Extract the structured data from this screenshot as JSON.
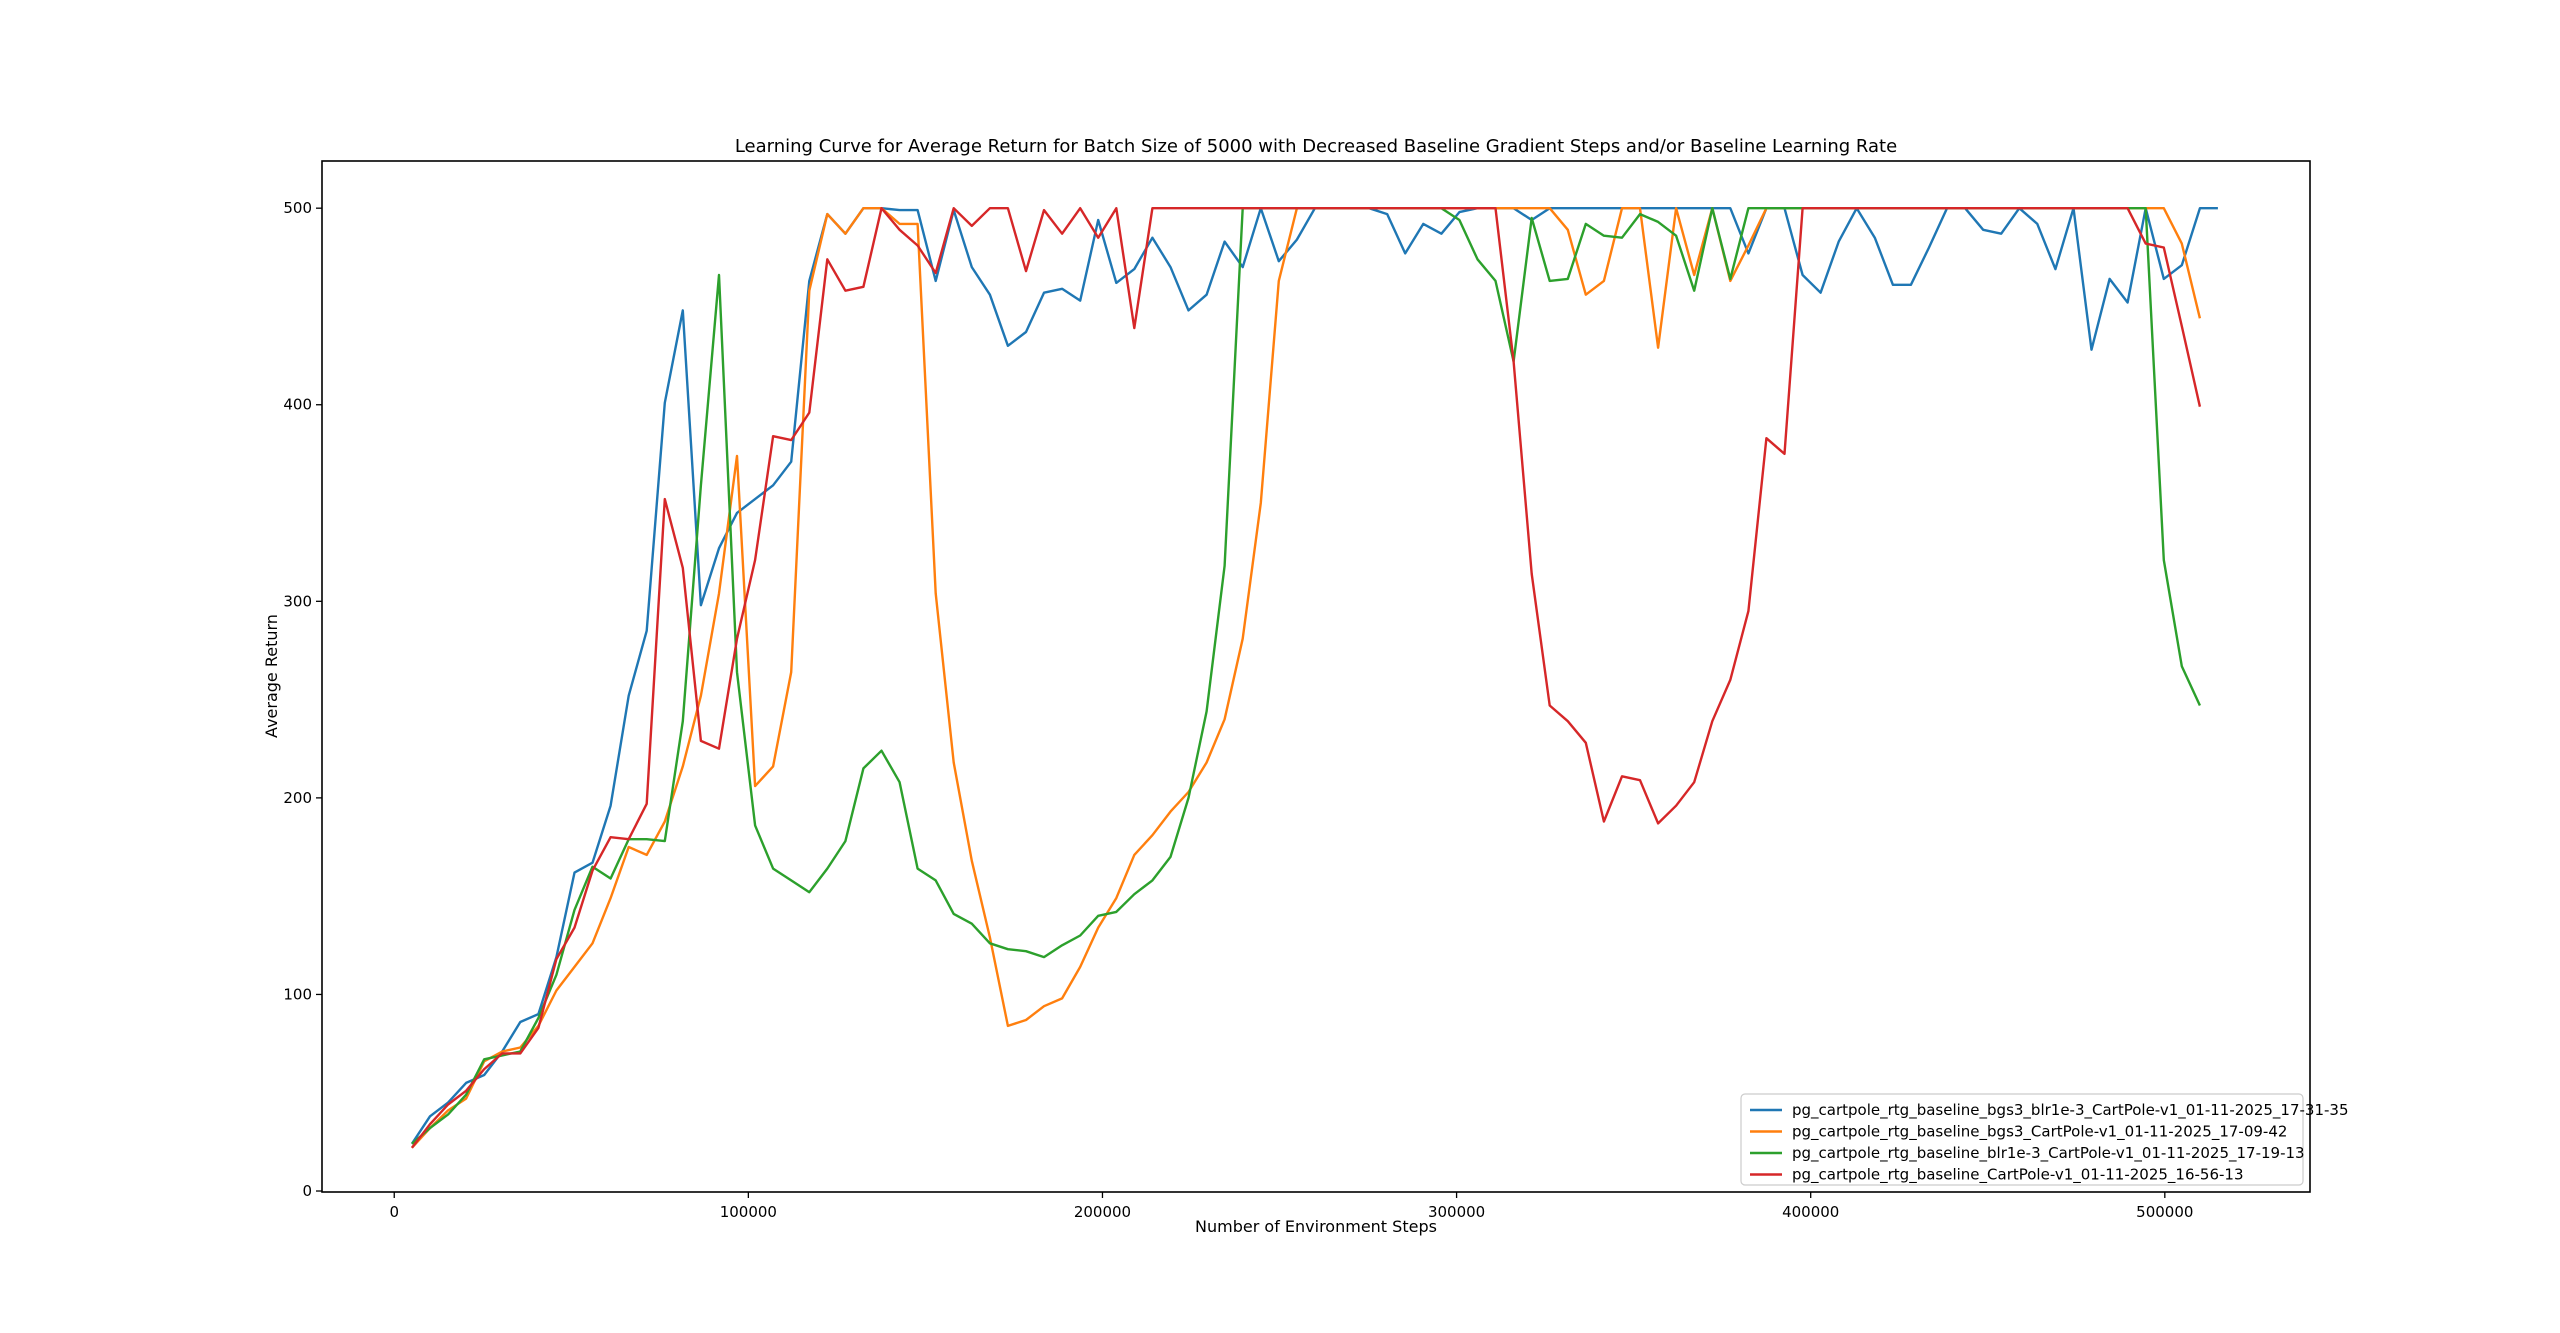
{
  "chart_data": {
    "type": "line",
    "title": "Learning Curve for Average Return for Batch Size of 5000 with Decreased Baseline Gradient Steps and/or Baseline Learning Rate",
    "xlabel": "Number of Environment Steps",
    "ylabel": "Average Return",
    "xlim": [
      -20400,
      541000
    ],
    "ylim": [
      -0.5,
      524
    ],
    "xticks": [
      0,
      100000,
      200000,
      300000,
      400000,
      500000
    ],
    "xtick_labels": [
      "0",
      "100000",
      "200000",
      "300000",
      "400000",
      "500000"
    ],
    "yticks": [
      0,
      100,
      200,
      300,
      400,
      500
    ],
    "ytick_labels": [
      "0",
      "100",
      "200",
      "300",
      "400",
      "500"
    ],
    "grid": false,
    "legend_position": "lower-right",
    "x_start": 5000,
    "x_step": 5100,
    "series": [
      {
        "name": "pg_cartpole_rtg_baseline_bgs3_blr1e-3_CartPole-v1_01-11-2025_17-31-35",
        "color": "#1f77b4",
        "values": [
          24,
          38,
          45,
          55,
          59,
          71,
          86,
          90,
          119,
          162,
          167,
          196,
          252,
          285,
          401,
          448,
          298,
          327,
          345,
          352,
          359,
          371,
          463,
          497,
          487,
          500,
          500,
          499,
          499,
          463,
          499,
          470,
          456,
          430,
          437,
          457,
          459,
          453,
          494,
          462,
          469,
          485,
          470,
          448,
          456,
          483,
          470,
          500,
          473,
          484,
          500,
          500,
          500,
          500,
          497,
          477,
          492,
          487,
          498,
          500,
          500,
          500,
          494,
          500,
          500,
          500,
          500,
          500,
          500,
          500,
          500,
          500,
          500,
          500,
          477,
          500,
          500,
          466,
          457,
          483,
          500,
          485,
          461,
          461,
          480,
          500,
          500,
          489,
          487,
          500,
          492,
          469,
          500,
          428,
          464,
          452,
          500,
          464,
          471,
          500,
          500
        ]
      },
      {
        "name": "pg_cartpole_rtg_baseline_bgs3_CartPole-v1_01-11-2025_17-09-42",
        "color": "#ff7f0e",
        "values": [
          22,
          32,
          41,
          47,
          66,
          71,
          73,
          84,
          102,
          114,
          126,
          149,
          175,
          171,
          188,
          216,
          252,
          304,
          374,
          206,
          216,
          264,
          458,
          497,
          487,
          500,
          500,
          492,
          492,
          304,
          218,
          168,
          129,
          84,
          87,
          94,
          98,
          114,
          134,
          149,
          171,
          181,
          193,
          203,
          218,
          240,
          281,
          350,
          463,
          500,
          500,
          500,
          500,
          500,
          500,
          500,
          500,
          500,
          500,
          500,
          500,
          500,
          500,
          500,
          489,
          456,
          463,
          500,
          500,
          429,
          500,
          466,
          500,
          463,
          481,
          500,
          500,
          500,
          500,
          500,
          500,
          500,
          500,
          500,
          500,
          500,
          500,
          500,
          500,
          500,
          500,
          500,
          500,
          500,
          500,
          500,
          500,
          500,
          482,
          444
        ]
      },
      {
        "name": "pg_cartpole_rtg_baseline_blr1e-3_CartPole-v1_01-11-2025_17-19-13",
        "color": "#2ca02c",
        "values": [
          24,
          32,
          39,
          49,
          67,
          69,
          71,
          88,
          110,
          143,
          165,
          159,
          179,
          179,
          178,
          239,
          359,
          466,
          264,
          186,
          164,
          158,
          152,
          164,
          178,
          215,
          224,
          208,
          164,
          158,
          141,
          136,
          126,
          123,
          122,
          119,
          125,
          130,
          140,
          142,
          151,
          158,
          170,
          200,
          244,
          318,
          500,
          500,
          500,
          500,
          500,
          500,
          500,
          500,
          500,
          500,
          500,
          500,
          494,
          474,
          463,
          422,
          495,
          463,
          464,
          492,
          486,
          485,
          497,
          493,
          486,
          458,
          500,
          464,
          500,
          500,
          500,
          500,
          500,
          500,
          500,
          500,
          500,
          500,
          500,
          500,
          500,
          500,
          500,
          500,
          500,
          500,
          500,
          500,
          500,
          500,
          500,
          321,
          267,
          247
        ]
      },
      {
        "name": "pg_cartpole_rtg_baseline_CartPole-v1_01-11-2025_16-56-13",
        "color": "#d62728",
        "values": [
          22,
          34,
          44,
          51,
          62,
          70,
          70,
          83,
          118,
          134,
          163,
          180,
          179,
          197,
          352,
          317,
          229,
          225,
          281,
          321,
          384,
          382,
          396,
          474,
          458,
          460,
          500,
          489,
          481,
          467,
          500,
          491,
          500,
          500,
          468,
          499,
          487,
          500,
          485,
          500,
          439,
          500,
          500,
          500,
          500,
          500,
          500,
          500,
          500,
          500,
          500,
          500,
          500,
          500,
          500,
          500,
          500,
          500,
          500,
          500,
          500,
          422,
          314,
          247,
          239,
          228,
          188,
          211,
          209,
          187,
          196,
          208,
          239,
          260,
          295,
          383,
          375,
          500,
          500,
          500,
          500,
          500,
          500,
          500,
          500,
          500,
          500,
          500,
          500,
          500,
          500,
          500,
          500,
          500,
          500,
          500,
          482,
          480,
          440,
          399
        ]
      }
    ]
  }
}
